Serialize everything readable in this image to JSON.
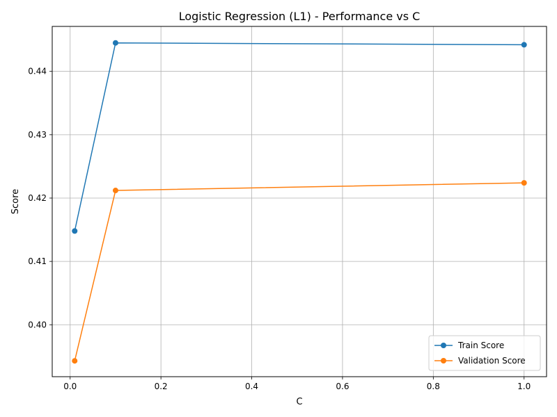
{
  "chart_data": {
    "type": "line",
    "title": "Logistic Regression (L1) - Performance vs C",
    "xlabel": "C",
    "ylabel": "Score",
    "x": [
      0.01,
      0.1,
      1.0
    ],
    "xlim": [
      -0.0395,
      1.0495
    ],
    "ylim": [
      0.3918,
      0.4471
    ],
    "xticks": [
      0.0,
      0.2,
      0.4,
      0.6,
      0.8,
      1.0
    ],
    "xtick_labels": [
      "0.0",
      "0.2",
      "0.4",
      "0.6",
      "0.8",
      "1.0"
    ],
    "yticks": [
      0.4,
      0.41,
      0.42,
      0.43,
      0.44
    ],
    "ytick_labels": [
      "0.40",
      "0.41",
      "0.42",
      "0.43",
      "0.44"
    ],
    "grid": true,
    "legend_position": "lower right",
    "series": [
      {
        "name": "Train Score",
        "color": "#1f77b4",
        "marker": "circle",
        "values": [
          0.4148,
          0.4445,
          0.4442
        ]
      },
      {
        "name": "Validation Score",
        "color": "#ff7f0e",
        "marker": "circle",
        "values": [
          0.3943,
          0.4212,
          0.4224
        ]
      }
    ]
  }
}
